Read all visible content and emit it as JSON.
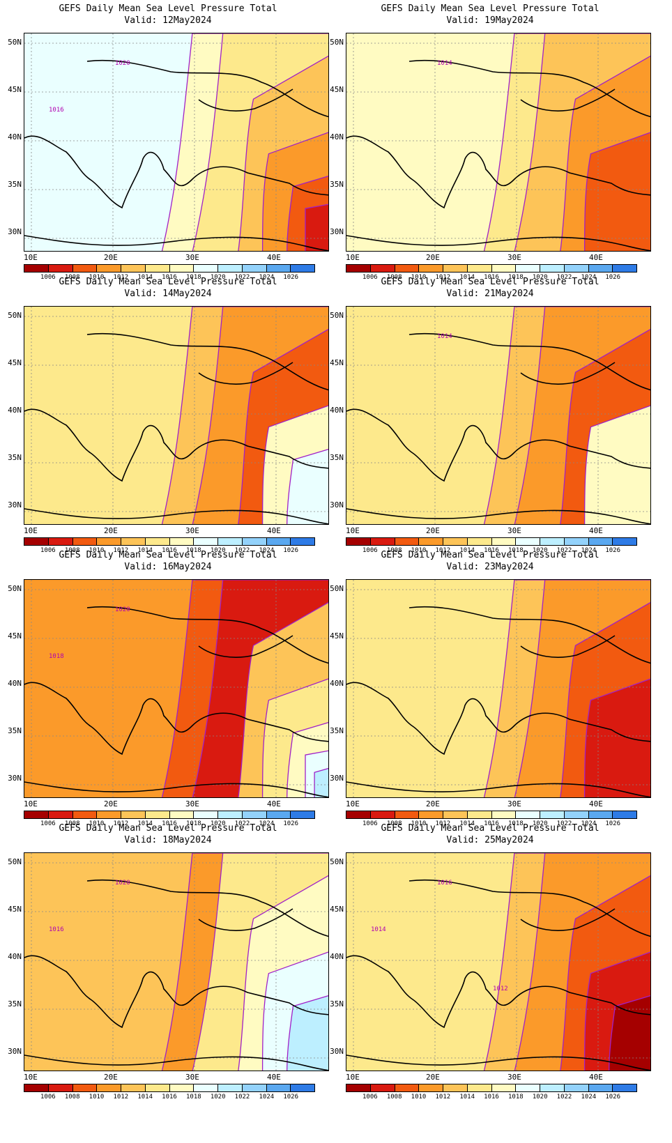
{
  "title_prefix": "GEFS Daily Mean Sea Level Pressure Total",
  "panels": [
    {
      "title": "GEFS Daily Mean Sea Level Pressure Total",
      "valid": "Valid: 12May2024",
      "contour_labels": [
        "1020",
        "1016"
      ]
    },
    {
      "title": "GEFS Daily Mean Sea Level Pressure Total",
      "valid": "Valid: 19May2024",
      "contour_labels": [
        "1014"
      ]
    },
    {
      "title": "GEFS Daily Mean Sea Level Pressure Total",
      "valid": "Valid: 14May2024",
      "contour_labels": []
    },
    {
      "title": "GEFS Daily Mean Sea Level Pressure Total",
      "valid": "Valid: 21May2024",
      "contour_labels": [
        "1014"
      ]
    },
    {
      "title": "GEFS Daily Mean Sea Level Pressure Total",
      "valid": "Valid: 16May2024",
      "contour_labels": [
        "1020",
        "1018"
      ]
    },
    {
      "title": "GEFS Daily Mean Sea Level Pressure Total",
      "valid": "Valid: 23May2024",
      "contour_labels": []
    },
    {
      "title": "GEFS Daily Mean Sea Level Pressure Total",
      "valid": "Valid: 18May2024",
      "contour_labels": [
        "1020",
        "1016"
      ]
    },
    {
      "title": "GEFS Daily Mean Sea Level Pressure Total",
      "valid": "Valid: 25May2024",
      "contour_labels": [
        "1016",
        "1014",
        "1012"
      ]
    }
  ],
  "lat_labels": [
    "50N",
    "45N",
    "40N",
    "35N",
    "30N"
  ],
  "lon_labels": [
    "10E",
    "20E",
    "30E",
    "40E"
  ],
  "colorbar": {
    "labels": [
      "1006",
      "1008",
      "1010",
      "1012",
      "1014",
      "1016",
      "1018",
      "1020",
      "1022",
      "1024",
      "1026"
    ],
    "colors": [
      "#a50000",
      "#d91a10",
      "#f25a10",
      "#fb9a2a",
      "#fdc458",
      "#fde98c",
      "#fffbc2",
      "#eaffff",
      "#bdefff",
      "#93d2fb",
      "#5aa8f0",
      "#2e7be6"
    ]
  },
  "contour_color": "#a020c8"
}
